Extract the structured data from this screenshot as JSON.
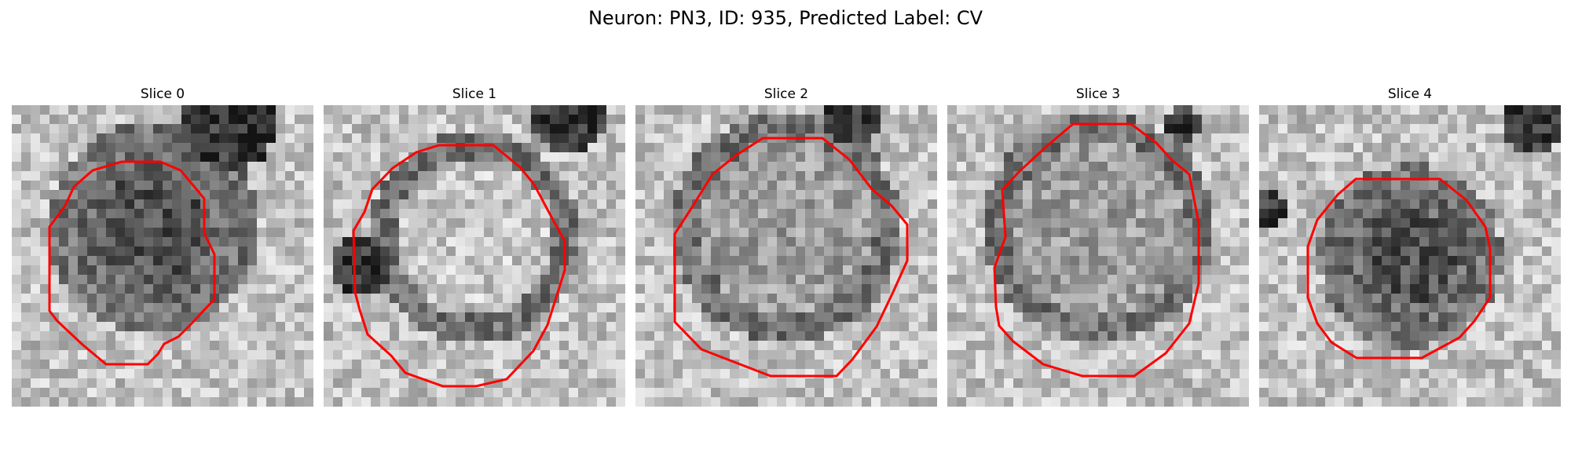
{
  "figure": {
    "title": "Neuron: PN3, ID: 935, Predicted Label: CV"
  },
  "panels": [
    {
      "title": "Slice 0",
      "image": "grayscale EM patch, dark granular cell body centre-left, red contour outline",
      "contour_color": "#ff0000"
    },
    {
      "title": "Slice 1",
      "image": "grayscale EM patch, bright cell body with dark ring, red contour outline",
      "contour_color": "#ff0000"
    },
    {
      "title": "Slice 2",
      "image": "grayscale EM patch, round cell body with darker rim, red contour outline",
      "contour_color": "#ff0000"
    },
    {
      "title": "Slice 3",
      "image": "grayscale EM patch, round cell body with dark ring, red contour outline",
      "contour_color": "#ff0000"
    },
    {
      "title": "Slice 4",
      "image": "grayscale EM patch, smaller dark cell body, red contour outline",
      "contour_color": "#ff0000"
    }
  ]
}
